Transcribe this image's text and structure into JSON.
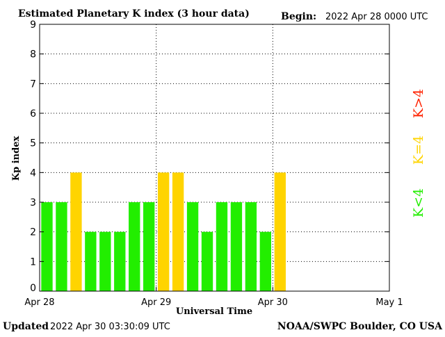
{
  "header": {
    "title": "Estimated Planetary K index (3 hour data)",
    "begin_label": "Begin:",
    "begin_value": "2022 Apr 28 0000 UTC"
  },
  "footer": {
    "updated_label": "Updated",
    "updated_value": "2022 Apr 30 03:30:09 UTC",
    "source": "NOAA/SWPC Boulder, CO USA"
  },
  "legend": {
    "high": "K>4",
    "equal": "K=4",
    "low": "K<4",
    "colors": {
      "low": "#22ee00",
      "equal": "#ffd400",
      "high": "#ff2200"
    }
  },
  "chart_data": {
    "type": "bar",
    "title": "Estimated Planetary K index (3 hour data)",
    "xlabel": "Universal Time",
    "ylabel": "Kp index",
    "ylim": [
      0,
      9
    ],
    "yticks": [
      "0",
      "1",
      "2",
      "3",
      "4",
      "5",
      "6",
      "7",
      "8",
      "9"
    ],
    "xticks": [
      "Apr 28",
      "Apr 29",
      "Apr 30",
      "May 1"
    ],
    "bar_interval_hours": 3,
    "values": [
      3,
      3,
      4,
      2,
      2,
      2,
      3,
      3,
      4,
      4,
      3,
      2,
      3,
      3,
      3,
      2,
      4
    ],
    "grid": true,
    "legend_position": "right"
  }
}
